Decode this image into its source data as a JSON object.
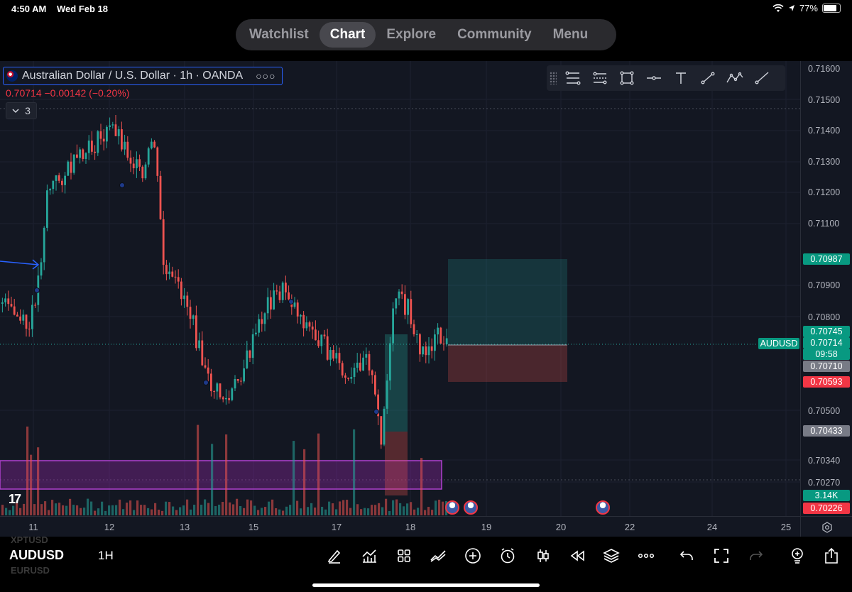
{
  "status_bar": {
    "time": "4:50 AM",
    "date": "Wed Feb 18",
    "battery": "77%",
    "battery_level": 0.77
  },
  "top_nav": {
    "tabs": [
      {
        "label": "Watchlist",
        "active": false
      },
      {
        "label": "Chart",
        "active": true
      },
      {
        "label": "Explore",
        "active": false
      },
      {
        "label": "Community",
        "active": false
      },
      {
        "label": "Menu",
        "active": false
      }
    ]
  },
  "chart_header": {
    "symbol_title": "Australian Dollar / U.S. Dollar · 1h · OANDA",
    "price_change": "0.70714  −0.00142 (−0.20%)",
    "indicator_count": "3"
  },
  "price_axis": {
    "labels": [
      "0.71600",
      "0.71500",
      "0.71400",
      "0.71300",
      "0.71200",
      "0.71100",
      "0.70900",
      "0.70800",
      "0.70500",
      "0.70340",
      "0.70270"
    ],
    "tags": [
      {
        "text": "0.70987",
        "color": "#089981"
      },
      {
        "text": "0.70745",
        "color": "#089981"
      },
      {
        "text": "0.70714",
        "color": "#089981"
      },
      {
        "text": "09:58",
        "color": "#089981"
      },
      {
        "text": "0.70710",
        "color": "#787b86"
      },
      {
        "text": "0.70593",
        "color": "#f23645"
      },
      {
        "text": "0.70433",
        "color": "#787b86"
      },
      {
        "text": "3.14K",
        "color": "#089981"
      },
      {
        "text": "0.70226",
        "color": "#f23645"
      }
    ]
  },
  "ticker_tag": "AUDUSD",
  "time_axis": {
    "labels": [
      "11",
      "12",
      "13",
      "15",
      "17",
      "18",
      "19",
      "20",
      "22",
      "24",
      "25"
    ]
  },
  "bottom_bar": {
    "ghost_top": "XPTUSD",
    "ghost_bottom": "EURUSD",
    "symbol": "AUDUSD",
    "interval": "1H"
  },
  "colors": {
    "up": "#26a69a",
    "down": "#ef5350",
    "background": "#131722",
    "accent": "#2962ff",
    "zone": "#9c27b0"
  },
  "icons": {
    "drawing_toolbar": [
      "fib-retracement-icon",
      "parallel-channel-icon",
      "rectangle-icon",
      "horizontal-line-icon",
      "text-icon",
      "trend-line-icon",
      "path-icon",
      "ray-icon"
    ],
    "bottom_tools": [
      "pencil-icon",
      "indicators-icon",
      "layouts-icon",
      "trade-icon",
      "add-icon",
      "alert-icon",
      "candle-style-icon",
      "replay-icon",
      "layers-icon",
      "more-icon",
      "undo-icon",
      "fullscreen-icon",
      "redo-icon",
      "ideas-icon",
      "share-icon"
    ]
  }
}
